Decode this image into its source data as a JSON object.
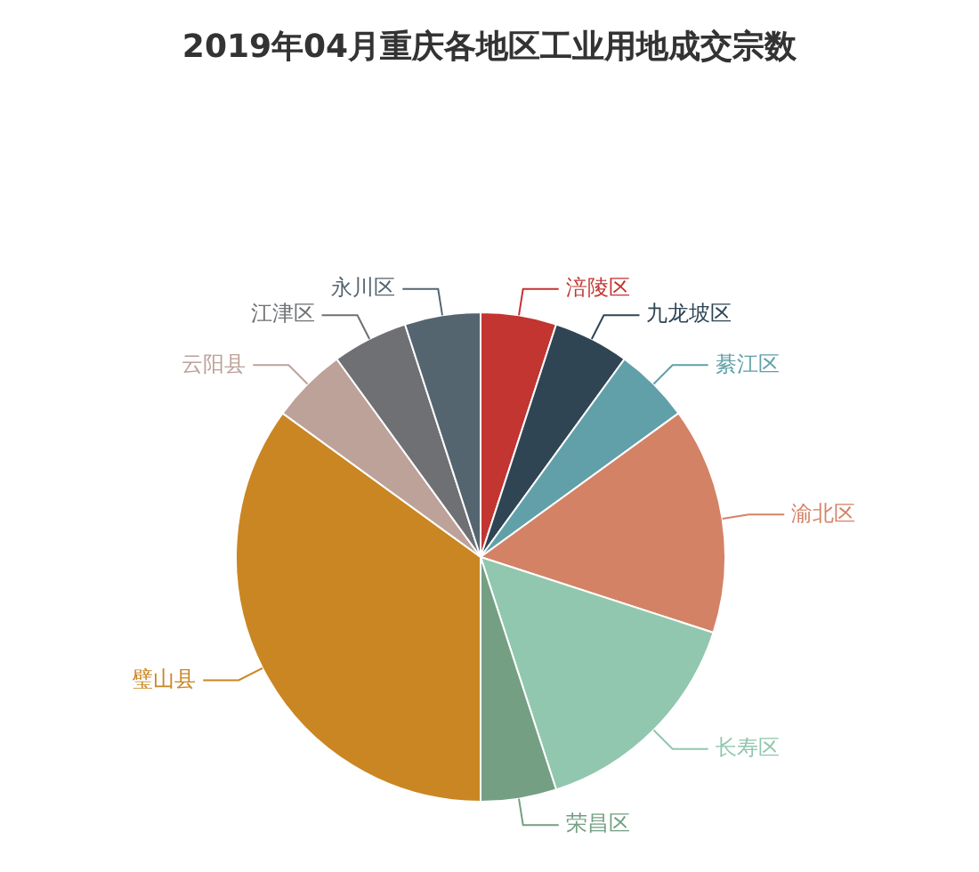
{
  "chart_data": {
    "type": "pie",
    "title": "2019年04月重庆各地区工业用地成交宗数",
    "categories": [
      "涪陵区",
      "九龙坡区",
      "綦江区",
      "渝北区",
      "长寿区",
      "荣昌区",
      "璧山县",
      "云阳县",
      "江津区",
      "永川区"
    ],
    "values": [
      5,
      5,
      5,
      15,
      15,
      5,
      35,
      5,
      5,
      5
    ],
    "colors": [
      "#c23531",
      "#2f4554",
      "#61a0a8",
      "#d48265",
      "#91c7ae",
      "#749f83",
      "#ca8622",
      "#bda29a",
      "#6e7074",
      "#546570"
    ],
    "legend": false
  }
}
